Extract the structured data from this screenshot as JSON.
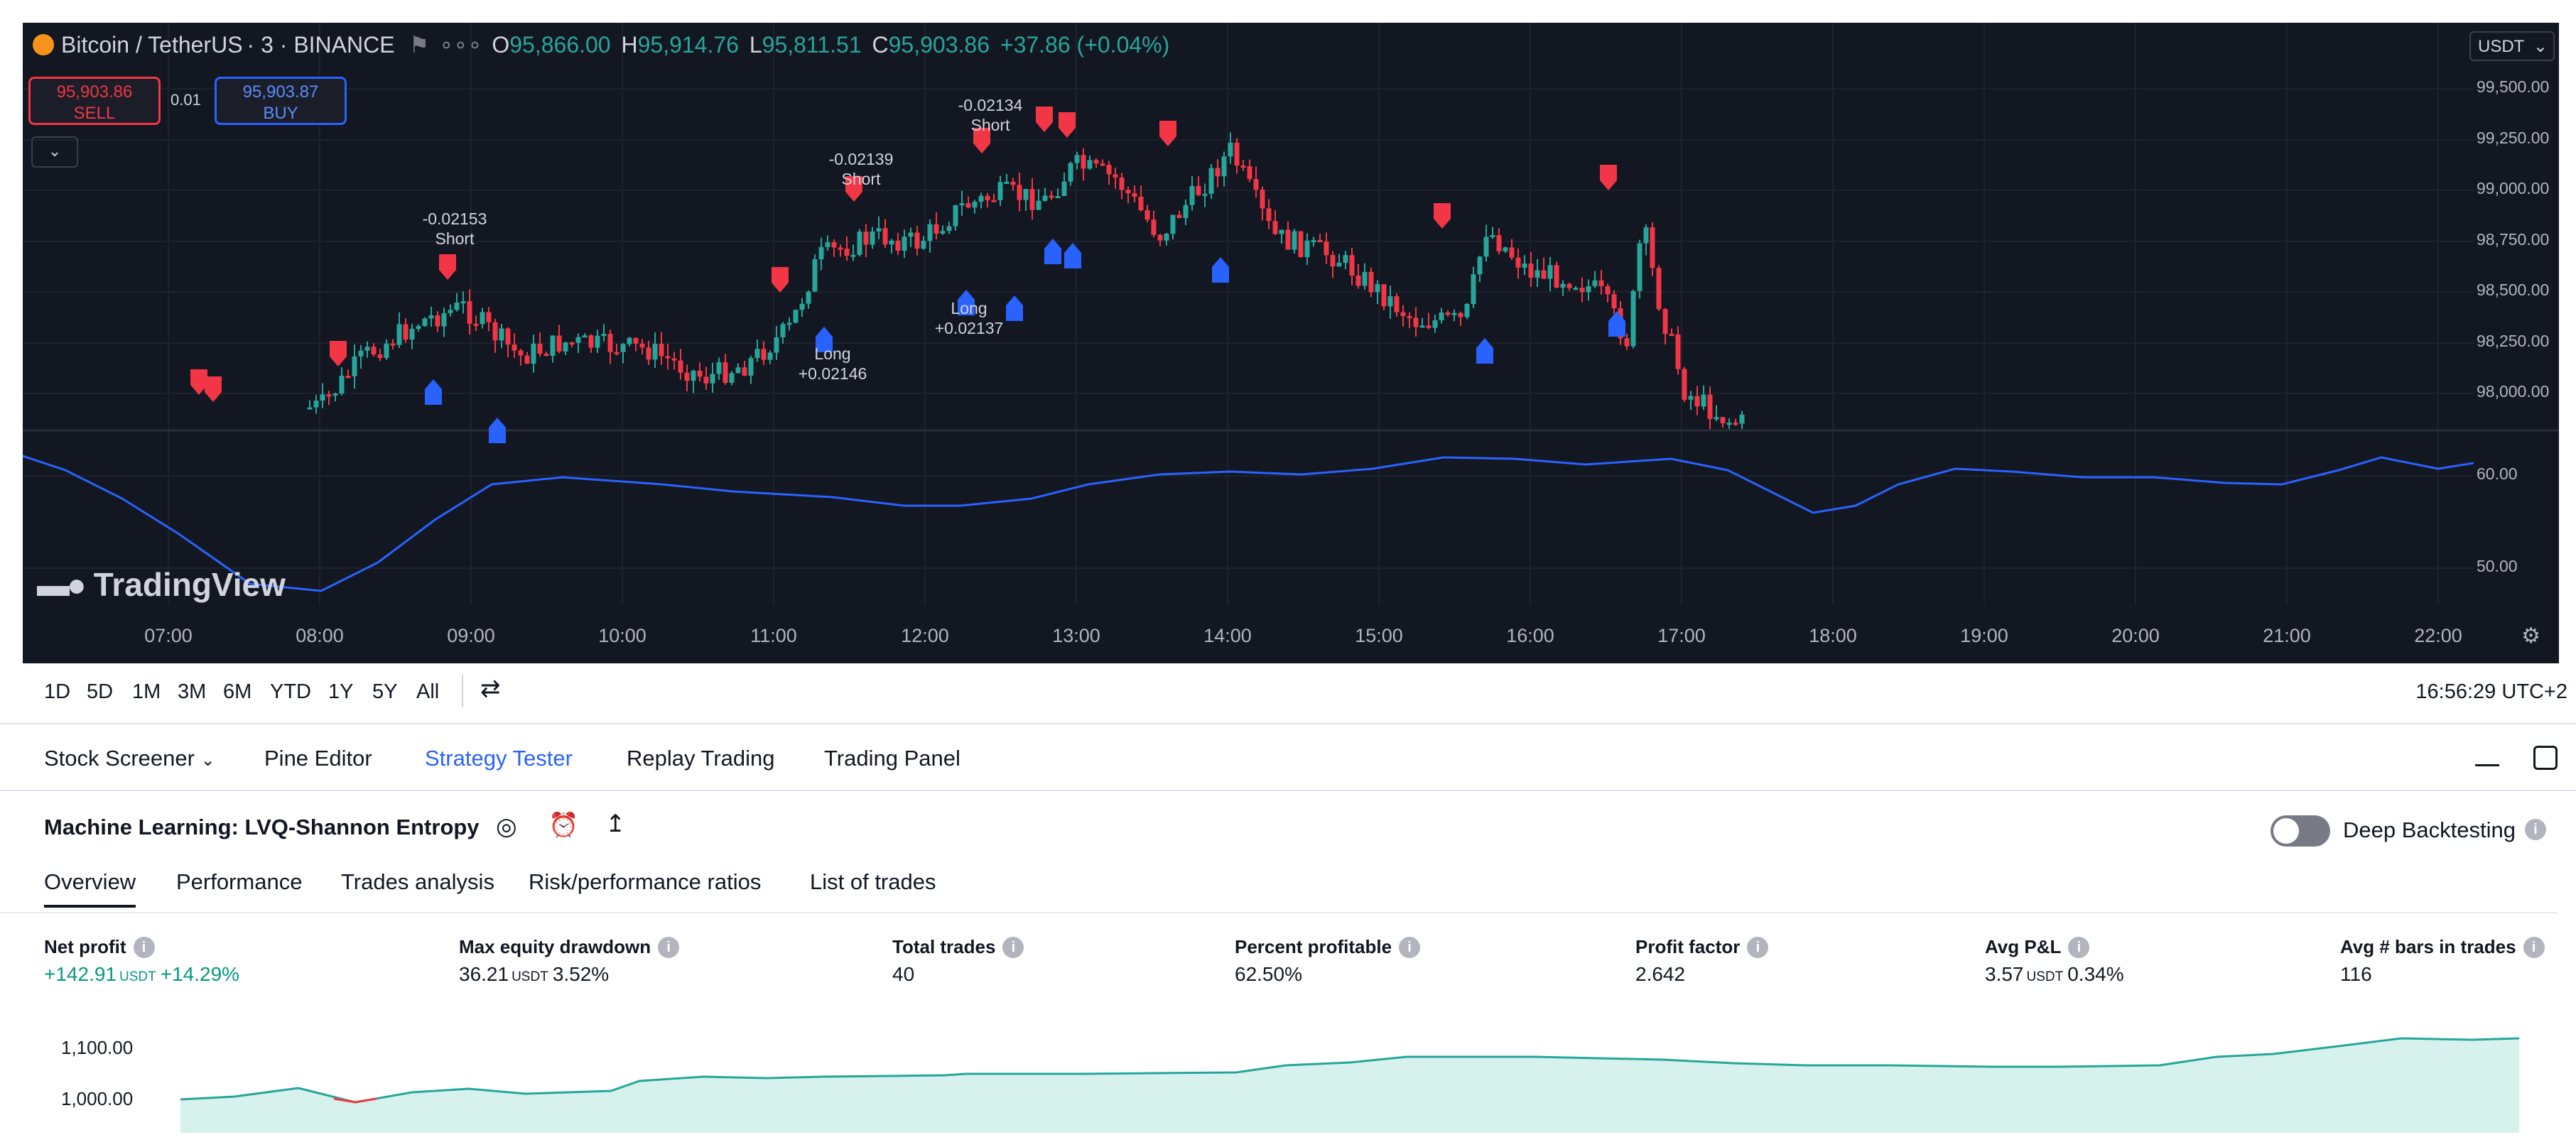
{
  "header": {
    "symbol": "Bitcoin / TetherUS",
    "interval": "· 3 · BINANCE",
    "ohlc_open": "95,866.00",
    "ohlc_high": "95,914.76",
    "ohlc_low": "95,811.51",
    "ohlc_close": "95,903.86",
    "ohlc_change": "+37.86 (+0.04%)",
    "currency": "USDT"
  },
  "trade": {
    "sell_price": "95,903.86",
    "sell_label": "SELL",
    "qty": "0.01",
    "buy_price": "95,903.87",
    "buy_label": "BUY"
  },
  "price_axis": [
    "99,500.00",
    "99,250.00",
    "99,000.00",
    "98,750.00",
    "98,500.00",
    "98,250.00",
    "98,000.00"
  ],
  "indicator_axis": [
    "60.00",
    "50.00"
  ],
  "time_axis": [
    "07:00",
    "08:00",
    "09:00",
    "10:00",
    "11:00",
    "12:00",
    "13:00",
    "14:00",
    "15:00",
    "16:00",
    "17:00",
    "18:00",
    "19:00",
    "20:00",
    "21:00",
    "22:00"
  ],
  "markers": [
    {
      "label": "Short",
      "value": "-0.02153"
    },
    {
      "label": "Long",
      "value": "+0.02146"
    },
    {
      "label": "Short",
      "value": "-0.02139"
    },
    {
      "label": "Short",
      "value": "-0.02134"
    },
    {
      "label": "Long",
      "value": "+0.02137"
    }
  ],
  "brand": "TradingView",
  "timeframes": [
    "1D",
    "5D",
    "1M",
    "3M",
    "6M",
    "YTD",
    "1Y",
    "5Y",
    "All"
  ],
  "clock": "16:56:29 UTC+2",
  "bottom_tabs": [
    "Stock Screener",
    "Pine Editor",
    "Strategy Tester",
    "Replay Trading",
    "Trading Panel"
  ],
  "strategy": {
    "name": "Machine Learning: LVQ-Shannon Entropy",
    "deep_backtesting": "Deep Backtesting",
    "subtabs": [
      "Overview",
      "Performance",
      "Trades analysis",
      "Risk/performance ratios",
      "List of trades"
    ]
  },
  "metrics": {
    "net_profit": {
      "label": "Net profit",
      "value": "+142.91",
      "unit": "USDT",
      "pct": "+14.29%"
    },
    "max_dd": {
      "label": "Max equity drawdown",
      "value": "36.21",
      "unit": "USDT",
      "pct": "3.52%"
    },
    "total_trades": {
      "label": "Total trades",
      "value": "40"
    },
    "pct_profitable": {
      "label": "Percent profitable",
      "value": "62.50%"
    },
    "profit_factor": {
      "label": "Profit factor",
      "value": "2.642"
    },
    "avg_pnl": {
      "label": "Avg P&L",
      "value": "3.57",
      "unit": "USDT",
      "pct": "0.34%"
    },
    "avg_bars": {
      "label": "Avg # bars in trades",
      "value": "116"
    }
  },
  "equity_axis": [
    "1,100.00",
    "1,000.00"
  ],
  "colors": {
    "up": "#26a69a",
    "down": "#f23645",
    "long": "#2962ff",
    "indicator": "#2962ff",
    "accent": "#2962ff"
  }
}
